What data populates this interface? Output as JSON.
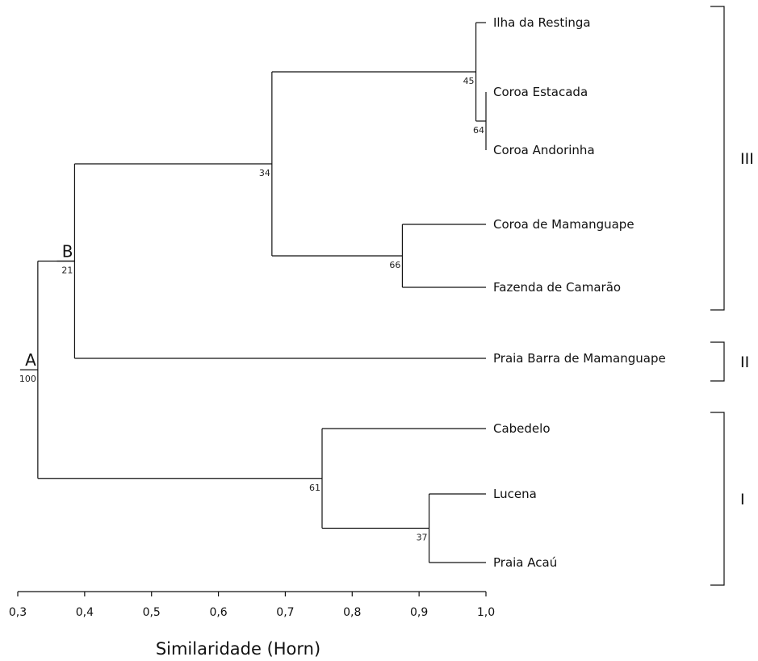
{
  "dendrogram": {
    "axis": {
      "title": "Similaridade (Horn)",
      "min": 0.3,
      "max": 1.0,
      "ticks": [
        {
          "value": 0.3,
          "label": "0,3"
        },
        {
          "value": 0.4,
          "label": "0,4"
        },
        {
          "value": 0.5,
          "label": "0,5"
        },
        {
          "value": 0.6,
          "label": "0,6"
        },
        {
          "value": 0.7,
          "label": "0,7"
        },
        {
          "value": 0.8,
          "label": "0,8"
        },
        {
          "value": 0.9,
          "label": "0,9"
        },
        {
          "value": 1.0,
          "label": "1,0"
        }
      ]
    },
    "leaves": [
      {
        "id": "ilha",
        "label": "Ilha da Restinga"
      },
      {
        "id": "estacada",
        "label": "Coroa Estacada"
      },
      {
        "id": "andorinha",
        "label": "Coroa Andorinha"
      },
      {
        "id": "mamanguape",
        "label": "Coroa de Mamanguape"
      },
      {
        "id": "fazenda",
        "label": "Fazenda de Camarão"
      },
      {
        "id": "barra",
        "label": "Praia Barra de Mamanguape"
      },
      {
        "id": "cabedelo",
        "label": "Cabedelo"
      },
      {
        "id": "lucena",
        "label": "Lucena"
      },
      {
        "id": "acau",
        "label": "Praia Acaú"
      }
    ],
    "nodes": [
      {
        "id": "n64",
        "children": [
          "estacada",
          "andorinha"
        ],
        "similarity": 1.0,
        "support": "64",
        "letter": ""
      },
      {
        "id": "n45",
        "children": [
          "ilha",
          "n64"
        ],
        "similarity": 0.985,
        "support": "45",
        "letter": ""
      },
      {
        "id": "n66",
        "children": [
          "mamanguape",
          "fazenda"
        ],
        "similarity": 0.875,
        "support": "66",
        "letter": ""
      },
      {
        "id": "n34",
        "children": [
          "n45",
          "n66"
        ],
        "similarity": 0.68,
        "support": "34",
        "letter": ""
      },
      {
        "id": "nB",
        "children": [
          "n34",
          "barra"
        ],
        "similarity": 0.385,
        "support": "21",
        "letter": "B"
      },
      {
        "id": "n37",
        "children": [
          "lucena",
          "acau"
        ],
        "similarity": 0.915,
        "support": "37",
        "letter": ""
      },
      {
        "id": "n61",
        "children": [
          "cabedelo",
          "n37"
        ],
        "similarity": 0.755,
        "support": "61",
        "letter": ""
      },
      {
        "id": "nA",
        "children": [
          "nB",
          "n61"
        ],
        "similarity": 0.33,
        "support": "100",
        "letter": "A"
      }
    ],
    "groups": [
      {
        "label": "III",
        "leaves": [
          "ilha",
          "fazenda"
        ]
      },
      {
        "label": "II",
        "leaves": [
          "barra",
          "barra"
        ]
      },
      {
        "label": "I",
        "leaves": [
          "cabedelo",
          "acau"
        ]
      }
    ]
  }
}
